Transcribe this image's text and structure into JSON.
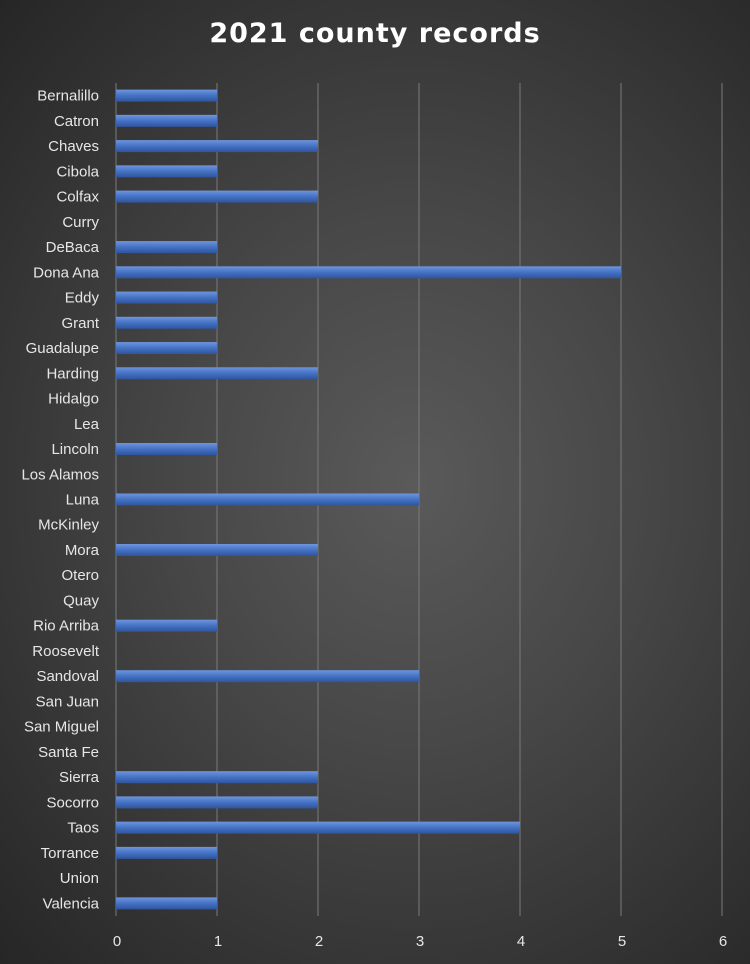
{
  "chart_data": {
    "type": "bar",
    "orientation": "horizontal",
    "title": "2021 county records",
    "xlabel": "",
    "ylabel": "",
    "xlim": [
      0,
      6
    ],
    "x_ticks": [
      "0",
      "1",
      "2",
      "3",
      "4",
      "5",
      "6"
    ],
    "grid": "vertical",
    "legend": "none",
    "bar_color": "#4472c4",
    "categories": [
      "Bernalillo",
      "Catron",
      "Chaves",
      "Cibola",
      "Colfax",
      "Curry",
      "DeBaca",
      "Dona Ana",
      "Eddy",
      "Grant",
      "Guadalupe",
      "Harding",
      "Hidalgo",
      "Lea",
      "Lincoln",
      "Los Alamos",
      "Luna",
      "McKinley",
      "Mora",
      "Otero",
      "Quay",
      "Rio Arriba",
      "Roosevelt",
      "Sandoval",
      "San Juan",
      "San Miguel",
      "Santa Fe",
      "Sierra",
      "Socorro",
      "Taos",
      "Torrance",
      "Union",
      "Valencia"
    ],
    "values": [
      1,
      1,
      2,
      1,
      2,
      0,
      1,
      5,
      1,
      1,
      1,
      2,
      0,
      0,
      1,
      0,
      3,
      0,
      2,
      0,
      0,
      1,
      0,
      3,
      0,
      0,
      0,
      2,
      2,
      4,
      1,
      0,
      1
    ]
  }
}
